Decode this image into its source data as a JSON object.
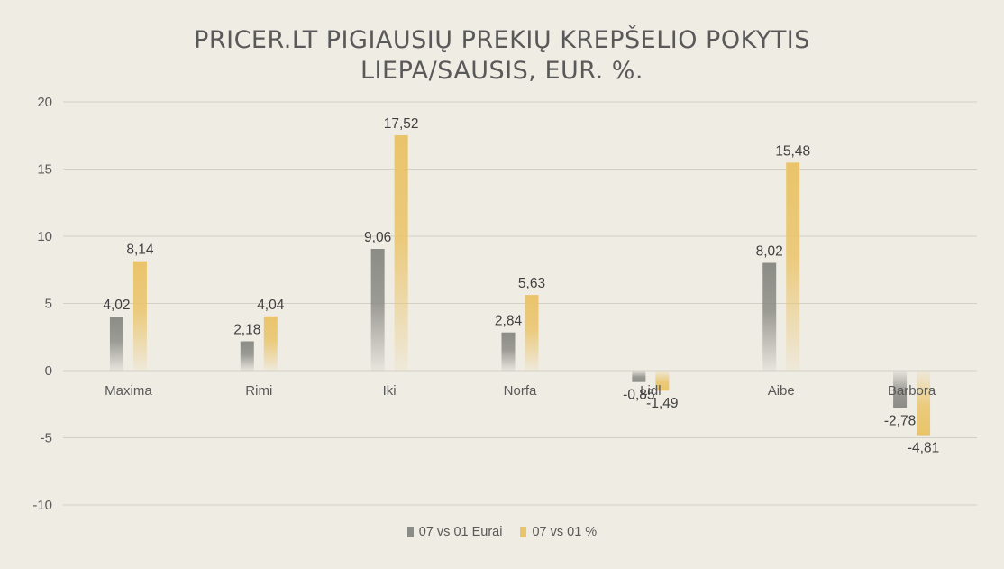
{
  "colors": {
    "background": "#efece4",
    "grid": "#d4d0c6",
    "series_eurai": "#8c8c86",
    "series_percent": "#eac46a",
    "text": "#595959"
  },
  "chart_data": {
    "type": "bar",
    "title_lines": [
      "PRICER.LT PIGIAUSIŲ PREKIŲ KREPŠELIO POKYTIS",
      "LIEPA/SAUSIS, EUR. %."
    ],
    "categories": [
      "Maxima",
      "Rimi",
      "Iki",
      "Norfa",
      "Lidl",
      "Aibe",
      "Barbora"
    ],
    "series": [
      {
        "name": "07 vs 01 Eurai",
        "values": [
          4.02,
          2.18,
          9.06,
          2.84,
          -0.85,
          8.02,
          -2.78
        ],
        "labels": [
          "4,02",
          "2,18",
          "9,06",
          "2,84",
          "-0,85",
          "8,02",
          "-2,78"
        ]
      },
      {
        "name": "07 vs 01 %",
        "values": [
          8.14,
          4.04,
          17.52,
          5.63,
          -1.49,
          15.48,
          -4.81
        ],
        "labels": [
          "8,14",
          "4,04",
          "17,52",
          "5,63",
          "-1,49",
          "15,48",
          "-4,81"
        ]
      }
    ],
    "ylim": [
      -10,
      20
    ],
    "yticks": [
      20,
      15,
      10,
      5,
      0,
      -5,
      -10
    ],
    "grid": true,
    "legend": "bottom",
    "xlabel": "",
    "ylabel": ""
  }
}
